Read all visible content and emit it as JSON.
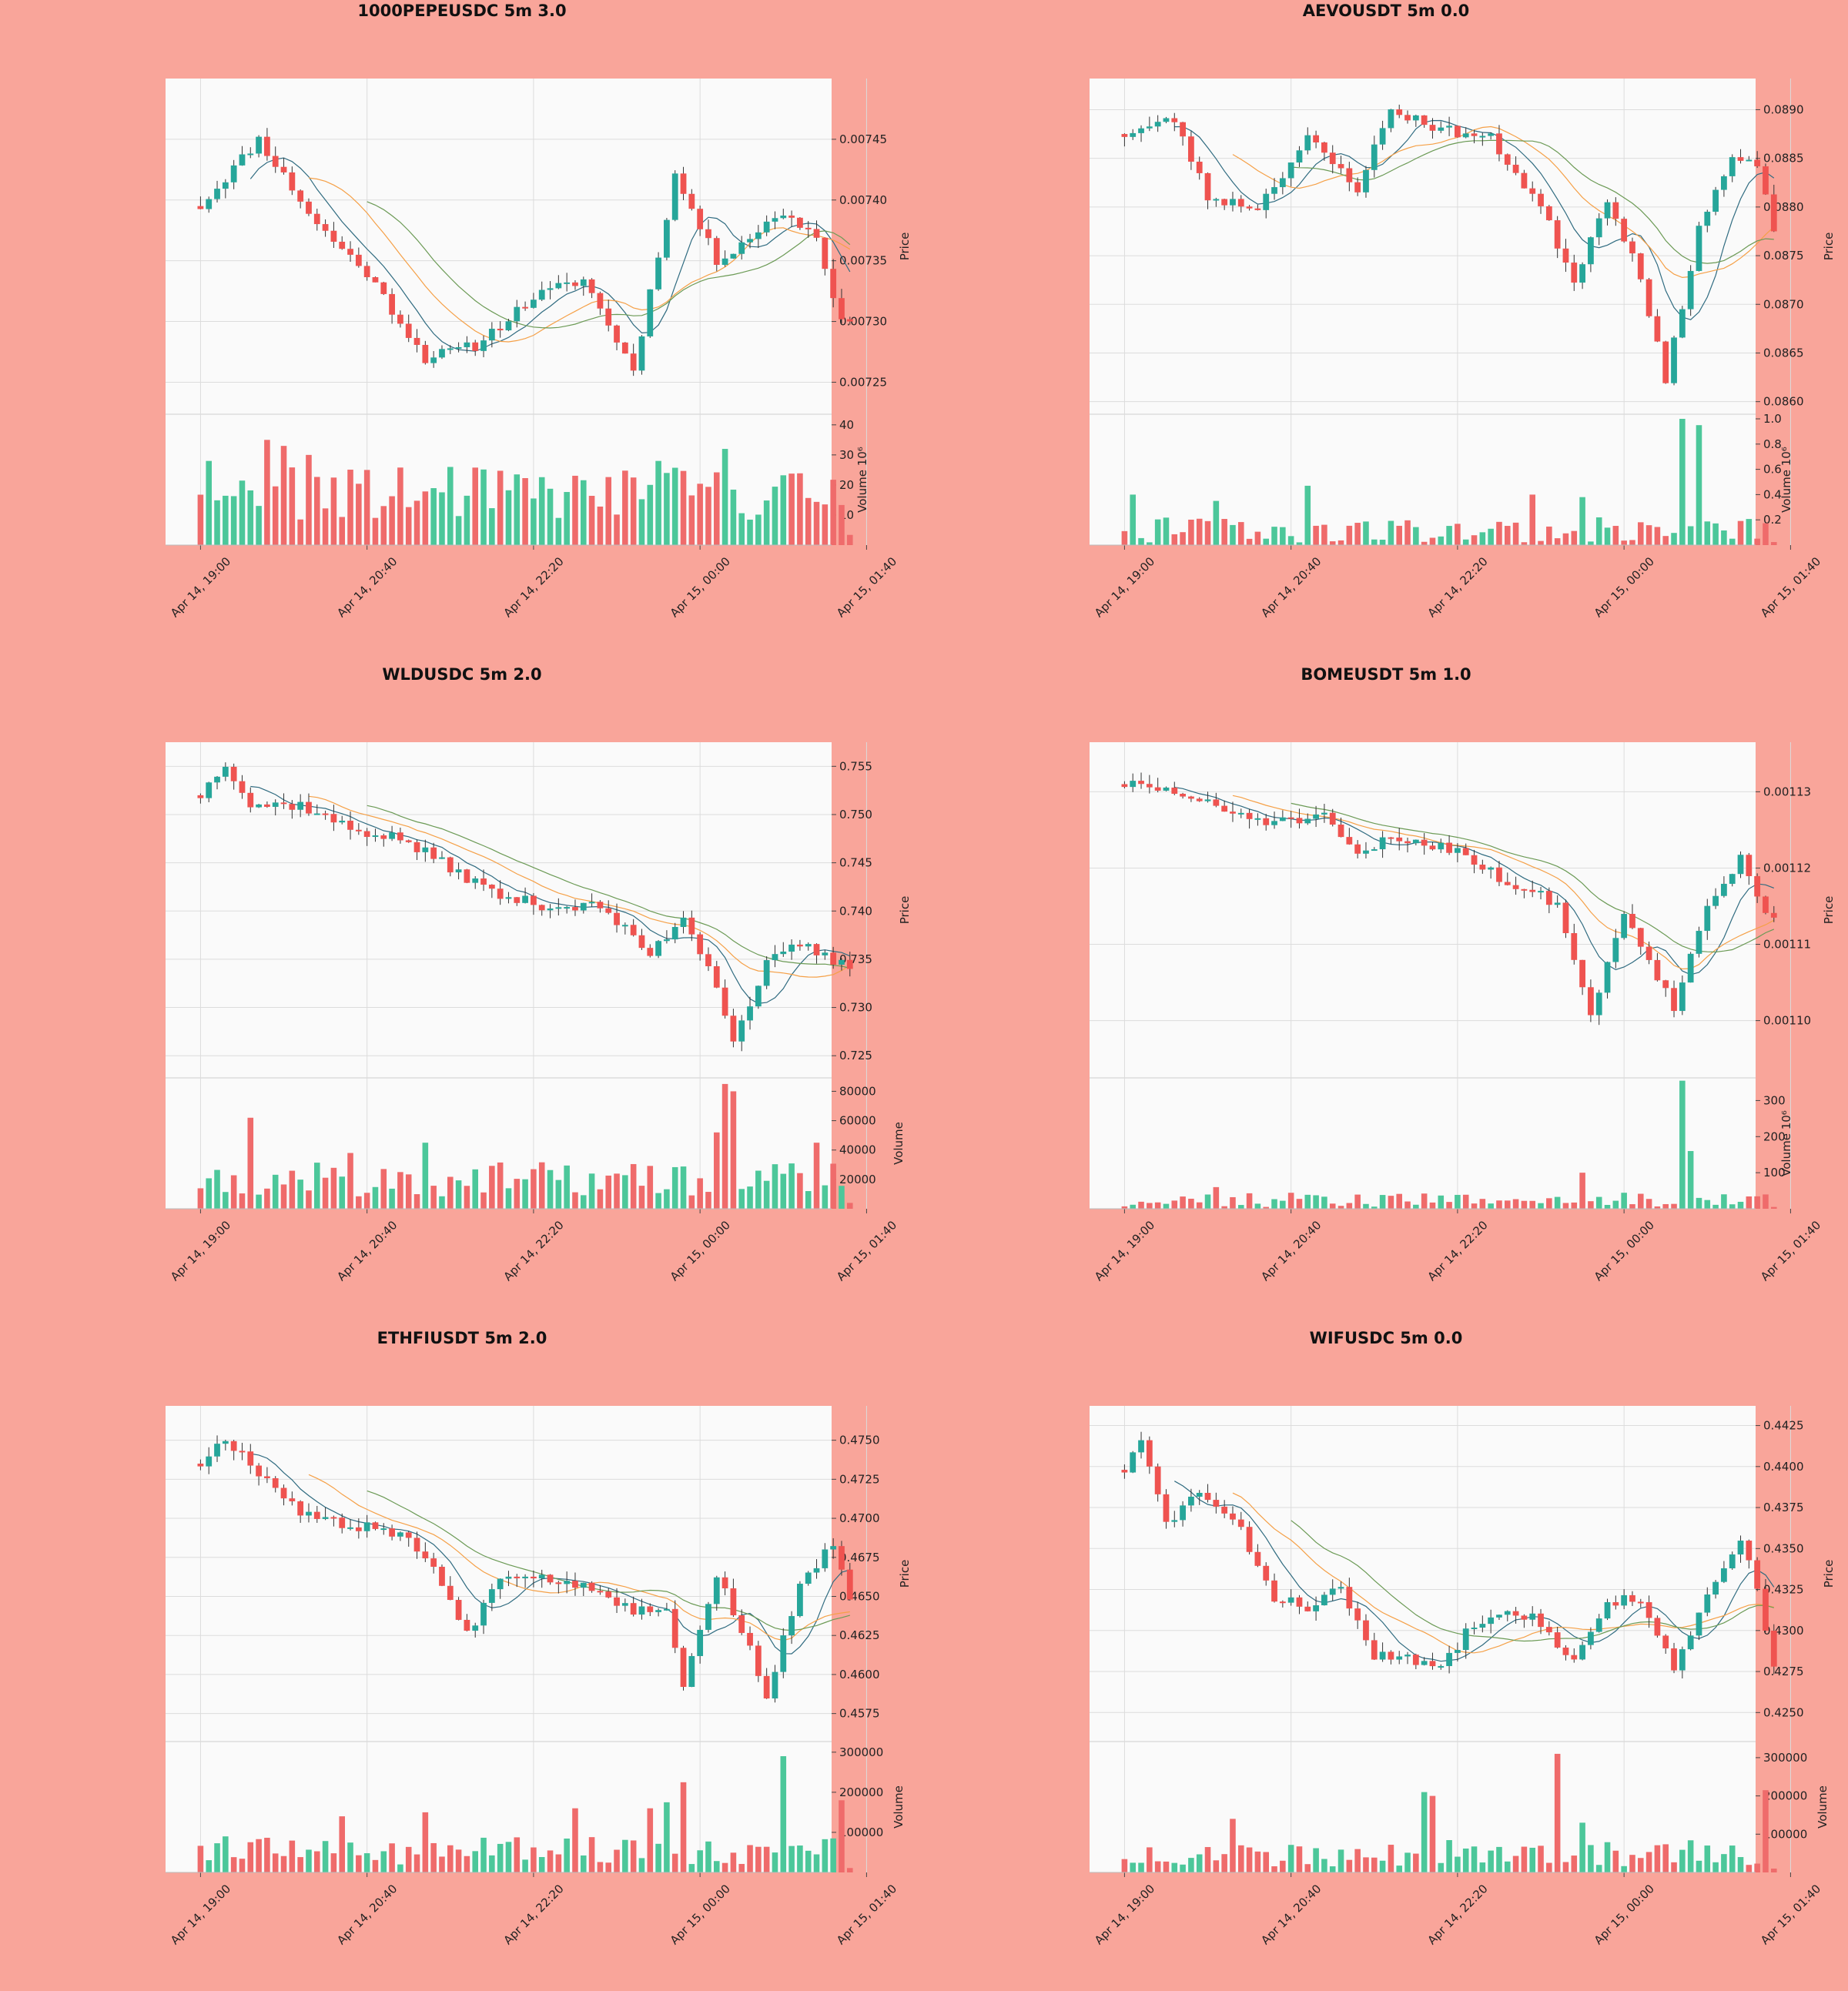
{
  "colors": {
    "background": "#f9a59a",
    "plot": "#fafafa",
    "up": "#26a69a",
    "down": "#ef5350",
    "up_vol": "#4cc79a",
    "down_vol": "#ef6b6b",
    "ma_fast": "#2f6b80",
    "ma_mid": "#f5a047",
    "ma_slow": "#6b9a55",
    "grid": "#dcdcdc"
  },
  "x_tick_labels": [
    "Apr 14, 19:00",
    "Apr 14, 20:40",
    "Apr 14, 22:20",
    "Apr 15, 00:00",
    "Apr 15, 01:40"
  ],
  "chart_data": [
    {
      "type": "candlestick",
      "title": "1000PEPEUSDC 5m 3.0",
      "ylabel": "Price",
      "vol_label": "Volume  10⁶",
      "ylim": [
        0.00723,
        0.0075
      ],
      "y_ticks": [
        0.00725,
        0.0073,
        0.00735,
        0.0074,
        0.00745
      ],
      "y_tick_labels": [
        "0.00725",
        "0.00730",
        "0.00735",
        "0.00740",
        "0.00745"
      ],
      "vol_ylim": [
        0,
        42
      ],
      "vol_ticks": [
        10,
        20,
        30,
        40
      ],
      "vol_tick_labels": [
        "10",
        "20",
        "30",
        "40"
      ],
      "start": 0.007395,
      "end": 0.0073,
      "keypoints": [
        [
          0,
          0.007395
        ],
        [
          7,
          0.00745
        ],
        [
          14,
          0.00738
        ],
        [
          20,
          0.00734
        ],
        [
          27,
          0.00727
        ],
        [
          33,
          0.00728
        ],
        [
          40,
          0.00732
        ],
        [
          46,
          0.007335
        ],
        [
          52,
          0.00726
        ],
        [
          57,
          0.00742
        ],
        [
          62,
          0.00735
        ],
        [
          70,
          0.00739
        ],
        [
          74,
          0.00737
        ],
        [
          77,
          0.0073
        ]
      ],
      "vol_base": 17,
      "vol_var": 9,
      "spikes": [
        [
          1,
          28
        ],
        [
          8,
          35
        ],
        [
          10,
          33
        ],
        [
          13,
          30
        ],
        [
          30,
          26
        ],
        [
          55,
          28
        ],
        [
          63,
          32
        ]
      ],
      "seed": 11
    },
    {
      "type": "candlestick",
      "title": "AEVOUSDT 5m 0.0",
      "ylabel": "Price",
      "vol_label": "Volume  10⁶",
      "ylim": [
        0.08595,
        0.08932
      ],
      "y_ticks": [
        0.086,
        0.0865,
        0.087,
        0.0875,
        0.088,
        0.0885,
        0.089
      ],
      "y_tick_labels": [
        "0.0860",
        "0.0865",
        "0.0870",
        "0.0875",
        "0.0880",
        "0.0885",
        "0.0890"
      ],
      "vol_ylim": [
        0,
        1.0
      ],
      "vol_ticks": [
        0.2,
        0.4,
        0.6,
        0.8,
        1.0
      ],
      "vol_tick_labels": [
        "0.2",
        "0.4",
        "0.6",
        "0.8",
        "1.0"
      ],
      "start": 0.08875,
      "end": 0.08775,
      "keypoints": [
        [
          0,
          0.08875
        ],
        [
          6,
          0.0889
        ],
        [
          10,
          0.0881
        ],
        [
          16,
          0.088
        ],
        [
          22,
          0.0887
        ],
        [
          28,
          0.0882
        ],
        [
          32,
          0.089
        ],
        [
          38,
          0.0888
        ],
        [
          44,
          0.0887
        ],
        [
          50,
          0.088
        ],
        [
          54,
          0.08725
        ],
        [
          58,
          0.0881
        ],
        [
          62,
          0.0873
        ],
        [
          65,
          0.0862
        ],
        [
          69,
          0.0878
        ],
        [
          73,
          0.0885
        ],
        [
          76,
          0.0884
        ],
        [
          78,
          0.08775
        ]
      ],
      "vol_base": 0.12,
      "vol_var": 0.1,
      "spikes": [
        [
          1,
          0.4
        ],
        [
          11,
          0.35
        ],
        [
          22,
          0.47
        ],
        [
          49,
          0.4
        ],
        [
          55,
          0.38
        ],
        [
          67,
          1.0
        ],
        [
          69,
          0.95
        ]
      ],
      "seed": 23
    },
    {
      "type": "candlestick",
      "title": "WLDUSDC 5m 2.0",
      "ylabel": "Price",
      "vol_label": "Volume",
      "ylim": [
        0.7235,
        0.7575
      ],
      "y_ticks": [
        0.725,
        0.73,
        0.735,
        0.74,
        0.745,
        0.75,
        0.755
      ],
      "y_tick_labels": [
        "0.725",
        "0.730",
        "0.735",
        "0.740",
        "0.745",
        "0.750",
        "0.755"
      ],
      "vol_ylim": [
        0,
        86000
      ],
      "vol_ticks": [
        20000,
        40000,
        60000,
        80000
      ],
      "vol_tick_labels": [
        "20000",
        "40000",
        "60000",
        "80000"
      ],
      "start": 0.752,
      "end": 0.734,
      "keypoints": [
        [
          0,
          0.752
        ],
        [
          3,
          0.7555
        ],
        [
          6,
          0.751
        ],
        [
          12,
          0.751
        ],
        [
          18,
          0.7485
        ],
        [
          24,
          0.7475
        ],
        [
          30,
          0.7445
        ],
        [
          36,
          0.7415
        ],
        [
          42,
          0.7405
        ],
        [
          48,
          0.7405
        ],
        [
          54,
          0.7355
        ],
        [
          58,
          0.7395
        ],
        [
          62,
          0.7325
        ],
        [
          64,
          0.7265
        ],
        [
          68,
          0.7345
        ],
        [
          72,
          0.7365
        ],
        [
          78,
          0.734
        ]
      ],
      "vol_base": 20000,
      "vol_var": 12000,
      "spikes": [
        [
          6,
          62000
        ],
        [
          18,
          38000
        ],
        [
          27,
          45000
        ],
        [
          62,
          52000
        ],
        [
          63,
          85000
        ],
        [
          64,
          80000
        ],
        [
          74,
          45000
        ]
      ],
      "seed": 37
    },
    {
      "type": "candlestick",
      "title": "BOMEUSDT 5m 1.0",
      "ylabel": "Price",
      "vol_label": "Volume  10⁶",
      "ylim": [
        0.0010935,
        0.0011365
      ],
      "y_ticks": [
        0.0011,
        0.00111,
        0.00112,
        0.00113
      ],
      "y_tick_labels": [
        "0.00110",
        "0.00111",
        "0.00112",
        "0.00113"
      ],
      "vol_ylim": [
        0,
        350
      ],
      "vol_ticks": [
        100,
        200,
        300
      ],
      "vol_tick_labels": [
        "100",
        "200",
        "300"
      ],
      "start": 0.001131,
      "end": 0.0011135,
      "keypoints": [
        [
          0,
          0.001131
        ],
        [
          6,
          0.00113
        ],
        [
          12,
          0.0011275
        ],
        [
          18,
          0.001126
        ],
        [
          24,
          0.0011265
        ],
        [
          28,
          0.0011215
        ],
        [
          32,
          0.001124
        ],
        [
          40,
          0.0011225
        ],
        [
          46,
          0.001118
        ],
        [
          52,
          0.0011155
        ],
        [
          56,
          0.0011005
        ],
        [
          60,
          0.0011145
        ],
        [
          64,
          0.001106
        ],
        [
          66,
          0.0011015
        ],
        [
          70,
          0.0011155
        ],
        [
          74,
          0.001121
        ],
        [
          77,
          0.0011135
        ]
      ],
      "vol_base": 25,
      "vol_var": 20,
      "spikes": [
        [
          11,
          60
        ],
        [
          55,
          100
        ],
        [
          67,
          355
        ],
        [
          68,
          160
        ]
      ],
      "seed": 51
    },
    {
      "type": "candlestick",
      "title": "ETHFIUSDT 5m 2.0",
      "ylabel": "Price",
      "vol_label": "Volume",
      "ylim": [
        0.4562,
        0.4772
      ],
      "y_ticks": [
        0.4575,
        0.46,
        0.4625,
        0.465,
        0.4675,
        0.47,
        0.4725,
        0.475
      ],
      "y_tick_labels": [
        "0.4575",
        "0.4600",
        "0.4625",
        "0.4650",
        "0.4675",
        "0.4700",
        "0.4725",
        "0.4750"
      ],
      "vol_ylim": [
        0,
        315000
      ],
      "vol_ticks": [
        100000,
        200000,
        300000
      ],
      "vol_tick_labels": [
        "100000",
        "200000",
        "300000"
      ],
      "start": 0.4735,
      "end": 0.4648,
      "keypoints": [
        [
          0,
          0.4735
        ],
        [
          3,
          0.4752
        ],
        [
          8,
          0.4725
        ],
        [
          12,
          0.4705
        ],
        [
          17,
          0.4695
        ],
        [
          22,
          0.4695
        ],
        [
          27,
          0.4678
        ],
        [
          32,
          0.4625
        ],
        [
          36,
          0.4665
        ],
        [
          42,
          0.4662
        ],
        [
          48,
          0.4655
        ],
        [
          52,
          0.464
        ],
        [
          56,
          0.4645
        ],
        [
          58,
          0.4592
        ],
        [
          62,
          0.4665
        ],
        [
          66,
          0.4615
        ],
        [
          68,
          0.4588
        ],
        [
          72,
          0.4655
        ],
        [
          76,
          0.4685
        ],
        [
          78,
          0.4648
        ]
      ],
      "vol_base": 55000,
      "vol_var": 35000,
      "spikes": [
        [
          17,
          140000
        ],
        [
          27,
          150000
        ],
        [
          45,
          160000
        ],
        [
          54,
          160000
        ],
        [
          56,
          175000
        ],
        [
          58,
          225000
        ],
        [
          70,
          290000
        ],
        [
          77,
          180000
        ]
      ],
      "seed": 67
    },
    {
      "type": "candlestick",
      "title": "WIFUSDC 5m 0.0",
      "ylabel": "Price",
      "vol_label": "Volume",
      "ylim": [
        0.4237,
        0.4437
      ],
      "y_ticks": [
        0.425,
        0.4275,
        0.43,
        0.4325,
        0.435,
        0.4375,
        0.44,
        0.4425
      ],
      "y_tick_labels": [
        "0.4250",
        "0.4275",
        "0.4300",
        "0.4325",
        "0.4350",
        "0.4375",
        "0.4400",
        "0.4425"
      ],
      "vol_ylim": [
        0,
        330000
      ],
      "vol_ticks": [
        100000,
        200000,
        300000
      ],
      "vol_tick_labels": [
        "100000",
        "200000",
        "300000"
      ],
      "start": 0.4398,
      "end": 0.4278,
      "keypoints": [
        [
          0,
          0.4398
        ],
        [
          2,
          0.4415
        ],
        [
          5,
          0.4365
        ],
        [
          9,
          0.4385
        ],
        [
          14,
          0.436
        ],
        [
          18,
          0.432
        ],
        [
          22,
          0.4315
        ],
        [
          26,
          0.4325
        ],
        [
          30,
          0.4285
        ],
        [
          34,
          0.4282
        ],
        [
          38,
          0.4278
        ],
        [
          42,
          0.4305
        ],
        [
          46,
          0.4315
        ],
        [
          50,
          0.4305
        ],
        [
          54,
          0.428
        ],
        [
          58,
          0.4318
        ],
        [
          62,
          0.432
        ],
        [
          66,
          0.4275
        ],
        [
          70,
          0.432
        ],
        [
          74,
          0.4355
        ],
        [
          76,
          0.4325
        ],
        [
          78,
          0.4278
        ]
      ],
      "vol_base": 50000,
      "vol_var": 35000,
      "spikes": [
        [
          13,
          140000
        ],
        [
          36,
          210000
        ],
        [
          37,
          200000
        ],
        [
          52,
          310000
        ],
        [
          55,
          130000
        ],
        [
          77,
          215000
        ]
      ],
      "seed": 83
    }
  ]
}
